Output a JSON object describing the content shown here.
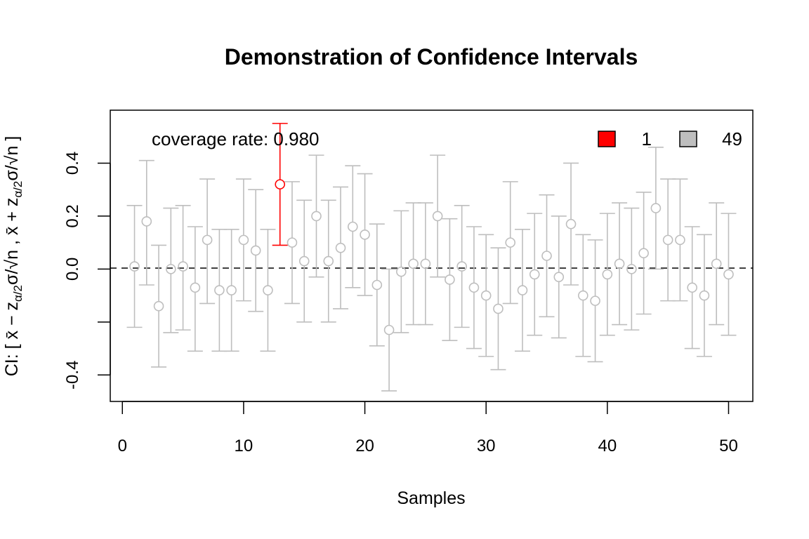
{
  "chart_data": {
    "type": "scatter",
    "title": "Demonstration of Confidence Intervals",
    "xlabel": "Samples",
    "ylabel": "CI: [ x̄ − z_{α/2}σ/√n ,  x̄ + z_{α/2}σ/√n ]",
    "xlim": [
      -1,
      52
    ],
    "ylim": [
      -0.5,
      0.6
    ],
    "xticks": [
      "0",
      "10",
      "20",
      "30",
      "40",
      "50"
    ],
    "yticks": [
      "-0.4",
      "",
      "0.0",
      "0.2",
      "0.4"
    ],
    "ytick_values": [
      -0.4,
      -0.2,
      0.0,
      0.2,
      0.4
    ],
    "reference_line": 0,
    "annotation": "coverage rate: 0.980",
    "legend": [
      {
        "label": "1",
        "color": "#ff0000"
      },
      {
        "label": "49",
        "color": "#bebebe"
      }
    ],
    "colors": {
      "covered": "#bebebe",
      "missed": "#ff0000"
    },
    "x": [
      1,
      2,
      3,
      4,
      5,
      6,
      7,
      8,
      9,
      10,
      11,
      12,
      13,
      14,
      15,
      16,
      17,
      18,
      19,
      20,
      21,
      22,
      23,
      24,
      25,
      26,
      27,
      28,
      29,
      30,
      31,
      32,
      33,
      34,
      35,
      36,
      37,
      38,
      39,
      40,
      41,
      42,
      43,
      44,
      45,
      46,
      47,
      48,
      49,
      50
    ],
    "mean": [
      0.01,
      0.18,
      -0.14,
      0.0,
      0.01,
      -0.07,
      0.11,
      -0.08,
      -0.08,
      0.11,
      0.07,
      -0.08,
      0.32,
      0.1,
      0.03,
      0.2,
      0.03,
      0.08,
      0.16,
      0.13,
      -0.06,
      -0.23,
      -0.01,
      0.02,
      0.02,
      0.2,
      -0.04,
      0.01,
      -0.07,
      -0.1,
      -0.15,
      0.1,
      -0.08,
      -0.02,
      0.05,
      -0.03,
      0.17,
      -0.1,
      -0.12,
      -0.02,
      0.02,
      0.0,
      0.06,
      0.23,
      0.11,
      0.11,
      -0.07,
      -0.1,
      0.02,
      -0.02
    ],
    "lower": [
      -0.22,
      -0.06,
      -0.37,
      -0.24,
      -0.23,
      -0.31,
      -0.13,
      -0.31,
      -0.31,
      -0.12,
      -0.16,
      -0.31,
      0.09,
      -0.13,
      -0.2,
      -0.03,
      -0.2,
      -0.15,
      -0.07,
      -0.1,
      -0.29,
      -0.46,
      -0.24,
      -0.21,
      -0.21,
      -0.03,
      -0.27,
      -0.22,
      -0.3,
      -0.33,
      -0.38,
      -0.13,
      -0.31,
      -0.25,
      -0.18,
      -0.26,
      -0.06,
      -0.33,
      -0.35,
      -0.25,
      -0.21,
      -0.23,
      -0.17,
      0.0,
      -0.12,
      -0.12,
      -0.3,
      -0.33,
      -0.21,
      -0.25
    ],
    "upper": [
      0.24,
      0.41,
      0.09,
      0.23,
      0.24,
      0.16,
      0.34,
      0.15,
      0.15,
      0.34,
      0.3,
      0.15,
      0.55,
      0.33,
      0.26,
      0.43,
      0.26,
      0.31,
      0.39,
      0.36,
      0.17,
      0.0,
      0.22,
      0.25,
      0.25,
      0.43,
      0.19,
      0.24,
      0.16,
      0.13,
      0.08,
      0.33,
      0.15,
      0.21,
      0.28,
      0.2,
      0.4,
      0.13,
      0.11,
      0.21,
      0.25,
      0.23,
      0.29,
      0.46,
      0.34,
      0.34,
      0.16,
      0.13,
      0.25,
      0.21
    ],
    "missed_index": [
      13
    ]
  }
}
